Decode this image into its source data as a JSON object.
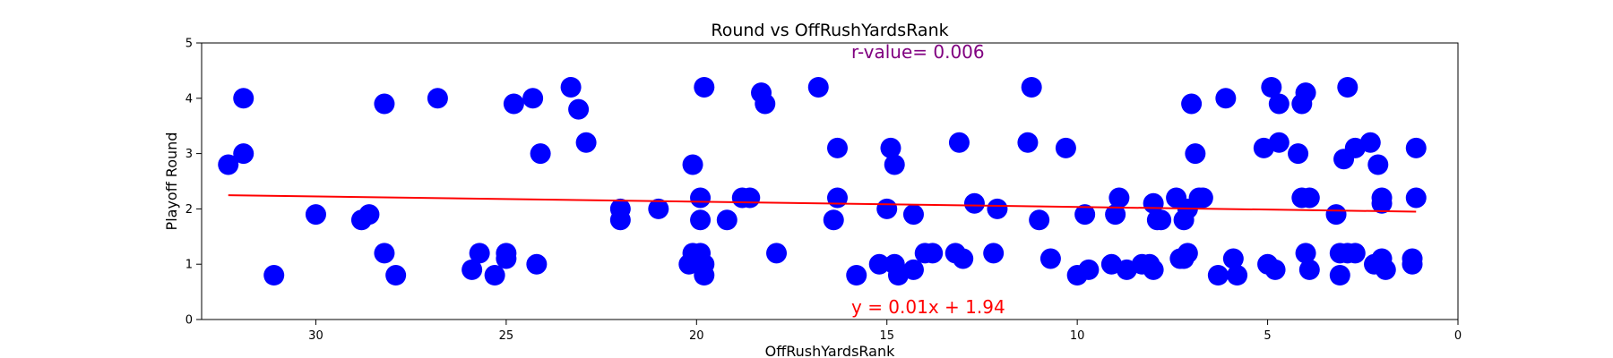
{
  "chart_data": {
    "type": "scatter",
    "title": "Round vs OffRushYardsRank",
    "xlabel": "OffRushYardsRank",
    "ylabel": "Playoff Round",
    "xlim": [
      33,
      0
    ],
    "ylim": [
      0,
      5
    ],
    "x_inverted": true,
    "xticks": [
      30,
      25,
      20,
      15,
      10,
      5,
      0
    ],
    "yticks": [
      0,
      1,
      2,
      3,
      4,
      5
    ],
    "grid": false,
    "point_color": "#0000ff",
    "line_color": "#ff0000",
    "annotation_r_color": "#800080",
    "annotation_r": "r-value= 0.006",
    "annotation_eq": "y = 0.01x + 1.94",
    "regression": {
      "slope": 0.0095,
      "intercept": 1.94,
      "x_range": [
        32.3,
        1.1
      ]
    },
    "series": [
      {
        "points": [
          [
            32.3,
            2.8
          ],
          [
            31.9,
            4.0
          ],
          [
            31.9,
            3.0
          ],
          [
            31.1,
            0.8
          ],
          [
            30.0,
            1.9
          ],
          [
            28.8,
            1.8
          ],
          [
            28.6,
            1.9
          ],
          [
            28.2,
            3.9
          ],
          [
            28.2,
            1.2
          ],
          [
            27.9,
            0.8
          ],
          [
            26.8,
            4.0
          ],
          [
            25.9,
            0.9
          ],
          [
            25.7,
            1.2
          ],
          [
            25.3,
            0.8
          ],
          [
            25.0,
            1.2
          ],
          [
            25.0,
            1.1
          ],
          [
            24.8,
            3.9
          ],
          [
            24.3,
            4.0
          ],
          [
            24.1,
            3.0
          ],
          [
            24.2,
            1.0
          ],
          [
            23.3,
            4.2
          ],
          [
            23.1,
            3.8
          ],
          [
            22.9,
            3.2
          ],
          [
            22.0,
            2.0
          ],
          [
            22.0,
            1.8
          ],
          [
            21.0,
            2.0
          ],
          [
            20.2,
            1.0
          ],
          [
            20.1,
            1.2
          ],
          [
            20.1,
            2.8
          ],
          [
            19.9,
            1.2
          ],
          [
            19.9,
            2.2
          ],
          [
            19.9,
            1.8
          ],
          [
            19.8,
            4.2
          ],
          [
            19.8,
            1.0
          ],
          [
            19.8,
            0.8
          ],
          [
            19.2,
            1.8
          ],
          [
            18.8,
            2.2
          ],
          [
            18.6,
            2.2
          ],
          [
            18.3,
            4.1
          ],
          [
            18.2,
            3.9
          ],
          [
            17.9,
            1.2
          ],
          [
            16.8,
            4.2
          ],
          [
            16.3,
            3.1
          ],
          [
            16.3,
            2.2
          ],
          [
            16.4,
            1.8
          ],
          [
            15.8,
            0.8
          ],
          [
            15.2,
            1.0
          ],
          [
            15.0,
            2.0
          ],
          [
            14.9,
            3.1
          ],
          [
            14.8,
            2.8
          ],
          [
            14.8,
            1.0
          ],
          [
            14.7,
            0.8
          ],
          [
            14.3,
            0.9
          ],
          [
            14.3,
            1.9
          ],
          [
            14.0,
            1.2
          ],
          [
            13.8,
            1.2
          ],
          [
            13.2,
            1.2
          ],
          [
            13.1,
            3.2
          ],
          [
            13.0,
            1.1
          ],
          [
            12.7,
            2.1
          ],
          [
            12.2,
            1.2
          ],
          [
            12.1,
            2.0
          ],
          [
            11.3,
            3.2
          ],
          [
            11.2,
            4.2
          ],
          [
            11.0,
            1.8
          ],
          [
            10.7,
            1.1
          ],
          [
            10.3,
            3.1
          ],
          [
            10.0,
            0.8
          ],
          [
            9.8,
            1.9
          ],
          [
            9.7,
            0.9
          ],
          [
            9.1,
            1.0
          ],
          [
            9.0,
            1.9
          ],
          [
            8.9,
            2.2
          ],
          [
            8.7,
            0.9
          ],
          [
            8.3,
            1.0
          ],
          [
            8.1,
            1.0
          ],
          [
            8.0,
            0.9
          ],
          [
            8.0,
            2.1
          ],
          [
            7.9,
            1.8
          ],
          [
            7.8,
            1.8
          ],
          [
            7.4,
            2.2
          ],
          [
            7.3,
            1.1
          ],
          [
            7.2,
            1.1
          ],
          [
            7.2,
            1.8
          ],
          [
            7.1,
            2.0
          ],
          [
            7.1,
            1.2
          ],
          [
            7.0,
            3.9
          ],
          [
            6.9,
            3.0
          ],
          [
            6.8,
            2.2
          ],
          [
            6.7,
            2.2
          ],
          [
            6.3,
            0.8
          ],
          [
            6.1,
            4.0
          ],
          [
            5.9,
            1.1
          ],
          [
            5.8,
            0.8
          ],
          [
            5.1,
            3.1
          ],
          [
            5.0,
            1.0
          ],
          [
            4.9,
            4.2
          ],
          [
            4.8,
            0.9
          ],
          [
            4.7,
            3.9
          ],
          [
            4.7,
            3.2
          ],
          [
            4.2,
            3.0
          ],
          [
            4.1,
            2.2
          ],
          [
            4.1,
            3.9
          ],
          [
            4.0,
            4.1
          ],
          [
            4.0,
            1.2
          ],
          [
            3.9,
            2.2
          ],
          [
            3.9,
            0.9
          ],
          [
            3.2,
            1.9
          ],
          [
            3.1,
            1.2
          ],
          [
            3.1,
            0.8
          ],
          [
            3.0,
            2.9
          ],
          [
            2.9,
            4.2
          ],
          [
            2.9,
            1.2
          ],
          [
            2.7,
            3.1
          ],
          [
            2.7,
            1.2
          ],
          [
            2.3,
            3.2
          ],
          [
            2.2,
            1.0
          ],
          [
            2.1,
            2.8
          ],
          [
            2.0,
            1.1
          ],
          [
            2.0,
            2.2
          ],
          [
            2.0,
            2.1
          ],
          [
            1.9,
            0.9
          ],
          [
            1.2,
            1.1
          ],
          [
            1.2,
            1.0
          ],
          [
            1.1,
            3.1
          ],
          [
            1.1,
            2.2
          ]
        ]
      }
    ]
  }
}
